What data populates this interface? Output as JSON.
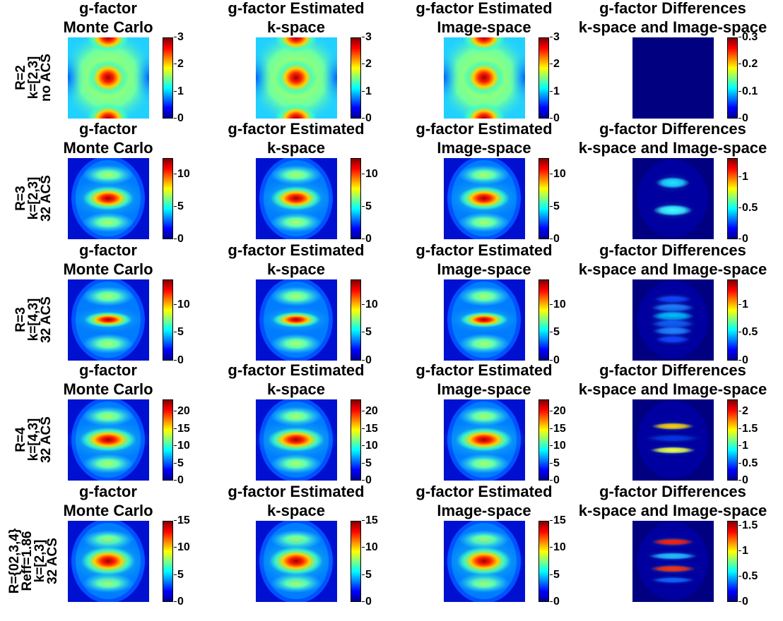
{
  "chart_data": {
    "type": "heatmap",
    "columns": [
      {
        "title_line1": "g-factor",
        "title_line2": "Monte Carlo"
      },
      {
        "title_line1": "g-factor Estimated",
        "title_line2": "k-space"
      },
      {
        "title_line1": "g-factor Estimated",
        "title_line2": "Image-space"
      },
      {
        "title_line1": "g-factor Differences",
        "title_line2": "k-space and Image-space"
      }
    ],
    "rows": [
      {
        "label_lines": [
          "R=2",
          "k=[2,3]",
          "no ACS"
        ],
        "colorbar_ticks": [
          [
            "0",
            "1",
            "2",
            "3"
          ],
          [
            "0",
            "1",
            "2",
            "3"
          ],
          [
            "0",
            "1",
            "2",
            "3"
          ],
          [
            "0",
            "0.1",
            "0.2",
            "0.3"
          ]
        ],
        "clim": [
          [
            0,
            3
          ],
          [
            0,
            3
          ],
          [
            0,
            3
          ],
          [
            0,
            0.3
          ]
        ]
      },
      {
        "label_lines": [
          "R=3",
          "k=[2,3]",
          "32 ACS"
        ],
        "colorbar_ticks": [
          [
            "0",
            "5",
            "10"
          ],
          [
            "0",
            "5",
            "10"
          ],
          [
            "0",
            "5",
            "10"
          ],
          [
            "0",
            "0.5",
            "1"
          ]
        ],
        "clim": [
          [
            0,
            12.5
          ],
          [
            0,
            12.5
          ],
          [
            0,
            12.5
          ],
          [
            0,
            1.3
          ]
        ]
      },
      {
        "label_lines": [
          "R=3",
          "k=[4,3]",
          "32 ACS"
        ],
        "colorbar_ticks": [
          [
            "0",
            "5",
            "10"
          ],
          [
            "0",
            "5",
            "10"
          ],
          [
            "0",
            "5",
            "10"
          ],
          [
            "0",
            "0.5",
            "1"
          ]
        ],
        "clim": [
          [
            0,
            14.5
          ],
          [
            0,
            14.5
          ],
          [
            0,
            14.5
          ],
          [
            0,
            1.45
          ]
        ]
      },
      {
        "label_lines": [
          "R=4",
          "k=[4,3]",
          "32 ACS"
        ],
        "colorbar_ticks": [
          [
            "0",
            "5",
            "10",
            "15",
            "20"
          ],
          [
            "0",
            "5",
            "10",
            "15",
            "20"
          ],
          [
            "0",
            "5",
            "10",
            "15",
            "20"
          ],
          [
            "0",
            "0.5",
            "1",
            "1.5",
            "2"
          ]
        ],
        "clim": [
          [
            0,
            23.5
          ],
          [
            0,
            23.5
          ],
          [
            0,
            23.5
          ],
          [
            0,
            2.35
          ]
        ]
      },
      {
        "label_lines": [
          "R={02,3,4}",
          "Reff=1.86",
          "k=[2,3]",
          "32 ACS"
        ],
        "colorbar_ticks": [
          [
            "0",
            "5",
            "10",
            "15"
          ],
          [
            "0",
            "5",
            "10",
            "15"
          ],
          [
            "0",
            "5",
            "10",
            "15"
          ],
          [
            "0",
            "0.5",
            "1",
            "1.5"
          ]
        ],
        "clim": [
          [
            0,
            15
          ],
          [
            0,
            15
          ],
          [
            0,
            15
          ],
          [
            0,
            1.6
          ]
        ]
      }
    ]
  }
}
